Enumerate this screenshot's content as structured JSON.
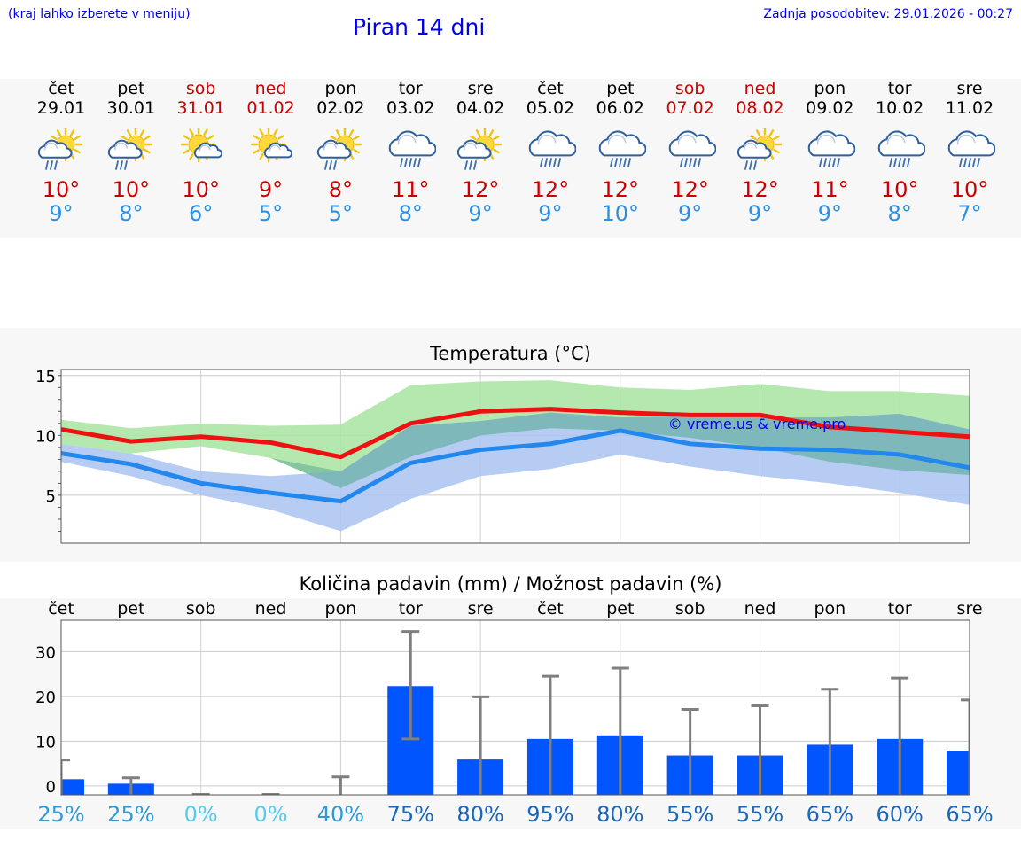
{
  "header": {
    "hint": "(kraj lahko izberete v meniju)",
    "title": "Piran 14 dni",
    "updated": "Zadnja posodobitev: 29.01.2026 - 00:27"
  },
  "colors": {
    "max": "#cc0000",
    "min": "#2b8fe6",
    "bar": "#0055ff",
    "green_band": "#a8e4a0",
    "blue_band": "#a9c3f1"
  },
  "forecast": [
    {
      "day": "čet",
      "date": "29.01",
      "weekend": false,
      "icon": "sun-cloud-rain-icon",
      "tmax": "10°",
      "tmin": "9°"
    },
    {
      "day": "pet",
      "date": "30.01",
      "weekend": false,
      "icon": "sun-cloud-rain-icon",
      "tmax": "10°",
      "tmin": "8°"
    },
    {
      "day": "sob",
      "date": "31.01",
      "weekend": true,
      "icon": "sun-cloud-icon",
      "tmax": "10°",
      "tmin": "6°"
    },
    {
      "day": "ned",
      "date": "01.02",
      "weekend": true,
      "icon": "sun-cloud-icon",
      "tmax": "9°",
      "tmin": "5°"
    },
    {
      "day": "pon",
      "date": "02.02",
      "weekend": false,
      "icon": "sun-cloud-rain-icon",
      "tmax": "8°",
      "tmin": "5°"
    },
    {
      "day": "tor",
      "date": "03.02",
      "weekend": false,
      "icon": "cloud-rain-icon",
      "tmax": "11°",
      "tmin": "8°"
    },
    {
      "day": "sre",
      "date": "04.02",
      "weekend": false,
      "icon": "sun-cloud-rain-icon",
      "tmax": "12°",
      "tmin": "9°"
    },
    {
      "day": "čet",
      "date": "05.02",
      "weekend": false,
      "icon": "cloud-rain-icon",
      "tmax": "12°",
      "tmin": "9°"
    },
    {
      "day": "pet",
      "date": "06.02",
      "weekend": false,
      "icon": "cloud-rain-icon",
      "tmax": "12°",
      "tmin": "10°"
    },
    {
      "day": "sob",
      "date": "07.02",
      "weekend": true,
      "icon": "cloud-rain-icon",
      "tmax": "12°",
      "tmin": "9°"
    },
    {
      "day": "ned",
      "date": "08.02",
      "weekend": true,
      "icon": "sun-cloud-rain-icon",
      "tmax": "12°",
      "tmin": "9°"
    },
    {
      "day": "pon",
      "date": "09.02",
      "weekend": false,
      "icon": "cloud-rain-icon",
      "tmax": "11°",
      "tmin": "9°"
    },
    {
      "day": "tor",
      "date": "10.02",
      "weekend": false,
      "icon": "cloud-rain-icon",
      "tmax": "10°",
      "tmin": "8°"
    },
    {
      "day": "sre",
      "date": "11.02",
      "weekend": false,
      "icon": "cloud-rain-icon",
      "tmax": "10°",
      "tmin": "7°"
    }
  ],
  "chart_data": [
    {
      "type": "line",
      "title": "Temperatura (°C)",
      "ylim": [
        1,
        15.5
      ],
      "yticks": [
        5,
        10,
        15
      ],
      "watermark": "© vreme.us & vreme.pro",
      "x": [
        0,
        1,
        2,
        3,
        4,
        5,
        6,
        7,
        8,
        9,
        10,
        11,
        12,
        13
      ],
      "series": [
        {
          "name": "max",
          "values": [
            10.5,
            9.5,
            9.9,
            9.4,
            8.2,
            11.0,
            12.0,
            12.2,
            11.9,
            11.7,
            11.7,
            10.7,
            10.3,
            9.9
          ]
        },
        {
          "name": "min",
          "values": [
            8.5,
            7.6,
            6.0,
            5.2,
            4.5,
            7.7,
            8.8,
            9.3,
            10.4,
            9.3,
            8.9,
            8.8,
            8.4,
            7.3
          ]
        },
        {
          "name": "max_band_upper",
          "values": [
            11.3,
            10.6,
            11.0,
            10.8,
            10.9,
            14.2,
            14.5,
            14.6,
            14.0,
            13.8,
            14.3,
            13.7,
            13.7,
            13.3
          ]
        },
        {
          "name": "max_band_lower",
          "values": [
            9.3,
            8.5,
            9.1,
            8.1,
            5.6,
            8.2,
            10.0,
            10.6,
            10.4,
            9.8,
            9.0,
            7.8,
            7.1,
            6.7
          ]
        },
        {
          "name": "min_band_upper",
          "values": [
            9.3,
            8.5,
            7.0,
            6.6,
            7.0,
            10.8,
            11.2,
            11.9,
            11.5,
            11.6,
            11.5,
            11.5,
            11.8,
            10.5
          ]
        },
        {
          "name": "min_band_lower",
          "values": [
            7.8,
            6.6,
            5.0,
            3.8,
            2.0,
            4.7,
            6.6,
            7.2,
            8.4,
            7.4,
            6.6,
            6.0,
            5.2,
            4.2
          ]
        }
      ]
    },
    {
      "type": "bar",
      "title": "Količina padavin (mm) / Možnost padavin (%)",
      "categories": [
        "čet",
        "pet",
        "sob",
        "ned",
        "pon",
        "tor",
        "sre",
        "čet",
        "pet",
        "sob",
        "ned",
        "pon",
        "tor",
        "sre"
      ],
      "ylim": [
        -2,
        37
      ],
      "yticks": [
        0,
        10,
        20,
        30
      ],
      "values": [
        1.5,
        0.5,
        0,
        0,
        0,
        22.3,
        5.9,
        10.5,
        11.3,
        6.8,
        6.8,
        9.2,
        10.5,
        7.9
      ],
      "error_low": [
        0,
        0,
        0,
        0,
        0,
        10.5,
        0,
        0,
        0,
        0,
        0,
        0,
        0,
        0
      ],
      "error_high": [
        5.8,
        1.8,
        0,
        0,
        2.0,
        34.5,
        19.9,
        24.5,
        26.3,
        17.1,
        17.9,
        21.6,
        24.1,
        19.2
      ],
      "probability": [
        "25%",
        "25%",
        "0%",
        "0%",
        "40%",
        "75%",
        "80%",
        "95%",
        "80%",
        "55%",
        "55%",
        "65%",
        "60%",
        "65%"
      ],
      "probability_colors": [
        "#2e9ad6",
        "#2e9ad6",
        "#55ccee",
        "#55ccee",
        "#2e9ad6",
        "#1a66b8",
        "#1a66b8",
        "#1a66b8",
        "#1a66b8",
        "#1a66b8",
        "#1a66b8",
        "#1a66b8",
        "#1a66b8",
        "#1a66b8"
      ]
    }
  ]
}
